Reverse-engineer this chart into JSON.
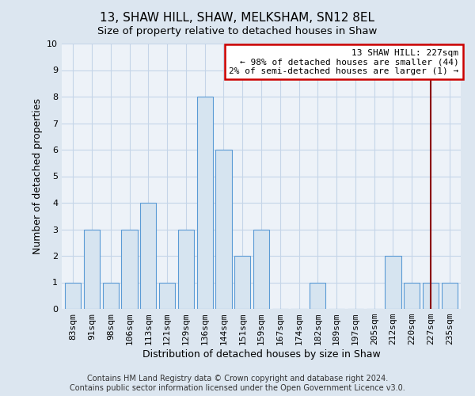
{
  "title": "13, SHAW HILL, SHAW, MELKSHAM, SN12 8EL",
  "subtitle": "Size of property relative to detached houses in Shaw",
  "xlabel": "Distribution of detached houses by size in Shaw",
  "ylabel": "Number of detached properties",
  "categories": [
    "83sqm",
    "91sqm",
    "98sqm",
    "106sqm",
    "113sqm",
    "121sqm",
    "129sqm",
    "136sqm",
    "144sqm",
    "151sqm",
    "159sqm",
    "167sqm",
    "174sqm",
    "182sqm",
    "189sqm",
    "197sqm",
    "205sqm",
    "212sqm",
    "220sqm",
    "227sqm",
    "235sqm"
  ],
  "values": [
    1,
    3,
    1,
    3,
    4,
    1,
    3,
    8,
    6,
    2,
    3,
    0,
    0,
    1,
    0,
    0,
    0,
    2,
    1,
    1,
    1
  ],
  "highlight_index": 19,
  "bar_facecolor": "#d6e4f0",
  "bar_edgecolor": "#5b9bd5",
  "subject_line_color": "#8b0000",
  "annotation_line1": "13 SHAW HILL: 227sqm",
  "annotation_line2": "← 98% of detached houses are smaller (44)",
  "annotation_line3": "2% of semi-detached houses are larger (1) →",
  "annotation_box_color": "#cc0000",
  "annotation_text_color": "#000000",
  "background_color": "#dce6f0",
  "plot_bg_color": "#edf2f8",
  "grid_color": "#c5d5e8",
  "footer_text": "Contains HM Land Registry data © Crown copyright and database right 2024.\nContains public sector information licensed under the Open Government Licence v3.0.",
  "ylim": [
    0,
    10
  ],
  "yticks": [
    0,
    1,
    2,
    3,
    4,
    5,
    6,
    7,
    8,
    9,
    10
  ],
  "title_fontsize": 11,
  "subtitle_fontsize": 9.5,
  "axis_label_fontsize": 9,
  "tick_fontsize": 8,
  "footer_fontsize": 7
}
